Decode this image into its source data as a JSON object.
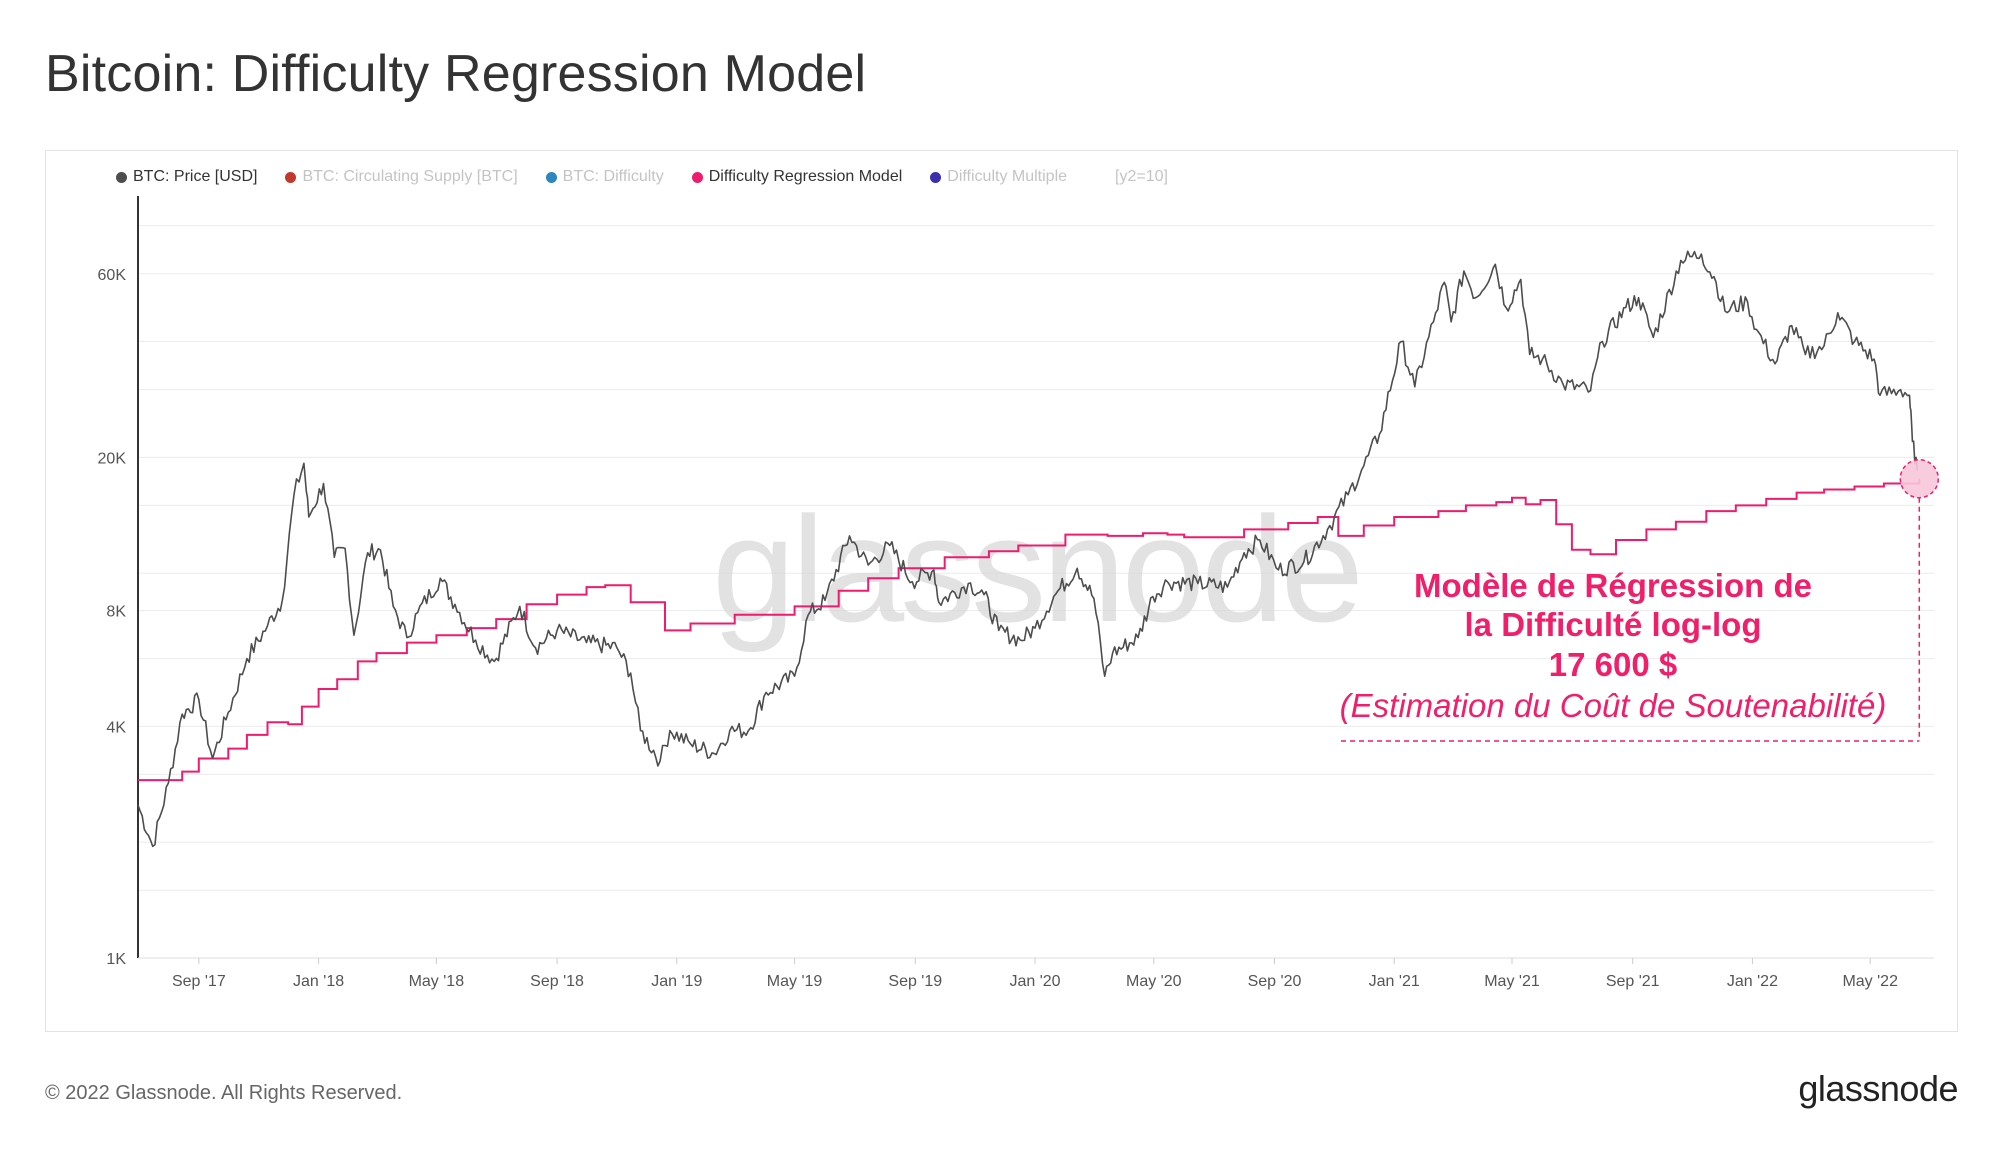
{
  "title": "Bitcoin: Difficulty Regression Model",
  "legend": {
    "items": [
      {
        "label": "BTC: Price [USD]",
        "color": "#4d4d4d",
        "active": true
      },
      {
        "label": "BTC: Circulating Supply [BTC]",
        "color": "#c0392b",
        "active": false
      },
      {
        "label": "BTC: Difficulty",
        "color": "#2e86c1",
        "active": false
      },
      {
        "label": "Difficulty Regression Model",
        "color": "#ee1b6f",
        "active": true
      },
      {
        "label": "Difficulty Multiple",
        "color": "#3b2fb0",
        "active": false
      }
    ],
    "extra": "[y2=10]"
  },
  "watermark": "glassnode",
  "annotation": {
    "line1": "Modèle de Régression de",
    "line2": "la Difficulté log-log",
    "value": "17 600 $",
    "subtitle": "(Estimation du Coût de Soutenabilité)",
    "color": "#ef1f6a",
    "date": "2022-06-20",
    "price": 17600
  },
  "footer": {
    "copyright": "© 2022 Glassnode. All Rights Reserved.",
    "brand": "glassnode"
  },
  "chart_data": {
    "type": "line",
    "y_scale": "log",
    "ylim": [
      1000,
      90000
    ],
    "y_ticks": [
      {
        "label": "1K",
        "value": 1000
      },
      {
        "label": "4K",
        "value": 4000
      },
      {
        "label": "8K",
        "value": 8000
      },
      {
        "label": "20K",
        "value": 20000
      },
      {
        "label": "60K",
        "value": 60000
      }
    ],
    "xlim": [
      "2017-07-01",
      "2022-07-05"
    ],
    "x_ticks": [
      {
        "label": "Sep '17",
        "date": "2017-09-01"
      },
      {
        "label": "Jan '18",
        "date": "2018-01-01"
      },
      {
        "label": "May '18",
        "date": "2018-05-01"
      },
      {
        "label": "Sep '18",
        "date": "2018-09-01"
      },
      {
        "label": "Jan '19",
        "date": "2019-01-01"
      },
      {
        "label": "May '19",
        "date": "2019-05-01"
      },
      {
        "label": "Sep '19",
        "date": "2019-09-01"
      },
      {
        "label": "Jan '20",
        "date": "2020-01-01"
      },
      {
        "label": "May '20",
        "date": "2020-05-01"
      },
      {
        "label": "Sep '20",
        "date": "2020-09-01"
      },
      {
        "label": "Jan '21",
        "date": "2021-01-01"
      },
      {
        "label": "May '21",
        "date": "2021-05-01"
      },
      {
        "label": "Sep '21",
        "date": "2021-09-01"
      },
      {
        "label": "Jan '22",
        "date": "2022-01-01"
      },
      {
        "label": "May '22",
        "date": "2022-05-01"
      }
    ],
    "series": [
      {
        "name": "BTC: Price [USD]",
        "color": "#4d4d4d",
        "points": [
          [
            "2017-07-01",
            2500
          ],
          [
            "2017-07-16",
            1950
          ],
          [
            "2017-08-01",
            2850
          ],
          [
            "2017-08-15",
            4300
          ],
          [
            "2017-09-01",
            4700
          ],
          [
            "2017-09-15",
            3300
          ],
          [
            "2017-10-01",
            4350
          ],
          [
            "2017-10-20",
            6000
          ],
          [
            "2017-11-10",
            7300
          ],
          [
            "2017-11-25",
            8500
          ],
          [
            "2017-12-07",
            16000
          ],
          [
            "2017-12-17",
            19300
          ],
          [
            "2017-12-22",
            14000
          ],
          [
            "2018-01-06",
            17100
          ],
          [
            "2018-01-17",
            11000
          ],
          [
            "2018-01-28",
            11600
          ],
          [
            "2018-02-06",
            6900
          ],
          [
            "2018-02-20",
            11300
          ],
          [
            "2018-03-05",
            11500
          ],
          [
            "2018-03-18",
            8200
          ],
          [
            "2018-04-01",
            6800
          ],
          [
            "2018-04-12",
            7900
          ],
          [
            "2018-05-05",
            9700
          ],
          [
            "2018-05-20",
            8300
          ],
          [
            "2018-06-10",
            6700
          ],
          [
            "2018-06-29",
            5900
          ],
          [
            "2018-07-25",
            8200
          ],
          [
            "2018-08-10",
            6400
          ],
          [
            "2018-09-01",
            7100
          ],
          [
            "2018-10-01",
            6600
          ],
          [
            "2018-11-01",
            6400
          ],
          [
            "2018-11-15",
            5500
          ],
          [
            "2018-11-25",
            3900
          ],
          [
            "2018-12-15",
            3250
          ],
          [
            "2018-12-25",
            3900
          ],
          [
            "2019-01-15",
            3600
          ],
          [
            "2019-02-08",
            3400
          ],
          [
            "2019-02-24",
            3900
          ],
          [
            "2019-03-15",
            3900
          ],
          [
            "2019-04-02",
            4900
          ],
          [
            "2019-05-01",
            5400
          ],
          [
            "2019-05-15",
            7800
          ],
          [
            "2019-06-01",
            8500
          ],
          [
            "2019-06-26",
            12500
          ],
          [
            "2019-07-15",
            10500
          ],
          [
            "2019-08-06",
            11800
          ],
          [
            "2019-08-29",
            9500
          ],
          [
            "2019-09-20",
            10200
          ],
          [
            "2019-09-25",
            8400
          ],
          [
            "2019-10-25",
            9400
          ],
          [
            "2019-11-10",
            8800
          ],
          [
            "2019-11-25",
            7100
          ],
          [
            "2019-12-17",
            6700
          ],
          [
            "2020-01-01",
            7200
          ],
          [
            "2020-01-20",
            8700
          ],
          [
            "2020-02-13",
            10300
          ],
          [
            "2020-03-01",
            8600
          ],
          [
            "2020-03-12",
            5400
          ],
          [
            "2020-03-20",
            6200
          ],
          [
            "2020-04-15",
            6800
          ],
          [
            "2020-04-30",
            8700
          ],
          [
            "2020-05-15",
            9500
          ],
          [
            "2020-06-15",
            9400
          ],
          [
            "2020-07-15",
            9200
          ],
          [
            "2020-08-01",
            11300
          ],
          [
            "2020-08-17",
            12200
          ],
          [
            "2020-09-05",
            10200
          ],
          [
            "2020-10-01",
            10700
          ],
          [
            "2020-10-25",
            13000
          ],
          [
            "2020-11-15",
            16000
          ],
          [
            "2020-12-01",
            19000
          ],
          [
            "2020-12-17",
            23000
          ],
          [
            "2021-01-08",
            40000
          ],
          [
            "2021-01-22",
            30500
          ],
          [
            "2021-02-10",
            45000
          ],
          [
            "2021-02-21",
            57000
          ],
          [
            "2021-02-28",
            45000
          ],
          [
            "2021-03-13",
            61000
          ],
          [
            "2021-03-25",
            52000
          ],
          [
            "2021-04-14",
            63500
          ],
          [
            "2021-04-25",
            49000
          ],
          [
            "2021-05-10",
            58000
          ],
          [
            "2021-05-19",
            37000
          ],
          [
            "2021-06-01",
            36000
          ],
          [
            "2021-06-22",
            31000
          ],
          [
            "2021-07-20",
            29800
          ],
          [
            "2021-08-01",
            40000
          ],
          [
            "2021-08-25",
            49000
          ],
          [
            "2021-09-07",
            52000
          ],
          [
            "2021-09-22",
            41000
          ],
          [
            "2021-10-20",
            65000
          ],
          [
            "2021-11-10",
            67500
          ],
          [
            "2021-11-25",
            57000
          ],
          [
            "2021-12-04",
            48000
          ],
          [
            "2021-12-27",
            50800
          ],
          [
            "2022-01-05",
            43000
          ],
          [
            "2022-01-24",
            35000
          ],
          [
            "2022-02-10",
            44000
          ],
          [
            "2022-02-24",
            37000
          ],
          [
            "2022-03-15",
            39000
          ],
          [
            "2022-03-29",
            47500
          ],
          [
            "2022-04-15",
            40000
          ],
          [
            "2022-05-05",
            36000
          ],
          [
            "2022-05-11",
            29000
          ],
          [
            "2022-06-01",
            30000
          ],
          [
            "2022-06-10",
            29000
          ],
          [
            "2022-06-13",
            22000
          ],
          [
            "2022-06-18",
            18500
          ]
        ]
      },
      {
        "name": "Difficulty Regression Model",
        "color": "#ee1b6f",
        "points": [
          [
            "2017-07-01",
            2900
          ],
          [
            "2017-08-15",
            3050
          ],
          [
            "2017-09-01",
            3300
          ],
          [
            "2017-10-01",
            3500
          ],
          [
            "2017-10-20",
            3800
          ],
          [
            "2017-11-10",
            4100
          ],
          [
            "2017-12-01",
            4050
          ],
          [
            "2017-12-15",
            4500
          ],
          [
            "2018-01-01",
            5000
          ],
          [
            "2018-01-20",
            5300
          ],
          [
            "2018-02-10",
            5900
          ],
          [
            "2018-03-01",
            6200
          ],
          [
            "2018-04-01",
            6600
          ],
          [
            "2018-05-01",
            6900
          ],
          [
            "2018-06-01",
            7200
          ],
          [
            "2018-07-01",
            7600
          ],
          [
            "2018-08-01",
            8300
          ],
          [
            "2018-09-01",
            8800
          ],
          [
            "2018-10-01",
            9200
          ],
          [
            "2018-10-20",
            9300
          ],
          [
            "2018-11-15",
            8400
          ],
          [
            "2018-12-20",
            7100
          ],
          [
            "2019-01-15",
            7400
          ],
          [
            "2019-03-01",
            7800
          ],
          [
            "2019-05-01",
            8200
          ],
          [
            "2019-06-15",
            9000
          ],
          [
            "2019-07-15",
            9700
          ],
          [
            "2019-08-15",
            10300
          ],
          [
            "2019-10-01",
            11000
          ],
          [
            "2019-11-15",
            11400
          ],
          [
            "2019-12-15",
            11800
          ],
          [
            "2020-02-01",
            12600
          ],
          [
            "2020-03-15",
            12500
          ],
          [
            "2020-04-20",
            12700
          ],
          [
            "2020-05-15",
            12600
          ],
          [
            "2020-06-01",
            12400
          ],
          [
            "2020-08-01",
            13000
          ],
          [
            "2020-09-15",
            13500
          ],
          [
            "2020-10-15",
            14000
          ],
          [
            "2020-11-05",
            12500
          ],
          [
            "2020-12-01",
            13300
          ],
          [
            "2021-01-01",
            14000
          ],
          [
            "2021-02-15",
            14500
          ],
          [
            "2021-03-15",
            15000
          ],
          [
            "2021-04-15",
            15300
          ],
          [
            "2021-05-01",
            15700
          ],
          [
            "2021-05-15",
            15100
          ],
          [
            "2021-05-30",
            15500
          ],
          [
            "2021-06-15",
            13400
          ],
          [
            "2021-07-01",
            11500
          ],
          [
            "2021-07-20",
            11200
          ],
          [
            "2021-08-15",
            12200
          ],
          [
            "2021-09-15",
            13000
          ],
          [
            "2021-10-15",
            13600
          ],
          [
            "2021-11-15",
            14500
          ],
          [
            "2021-12-15",
            15000
          ],
          [
            "2022-01-15",
            15600
          ],
          [
            "2022-02-15",
            16200
          ],
          [
            "2022-03-15",
            16500
          ],
          [
            "2022-04-15",
            16800
          ],
          [
            "2022-05-15",
            17100
          ],
          [
            "2022-06-20",
            17600
          ]
        ]
      }
    ]
  }
}
